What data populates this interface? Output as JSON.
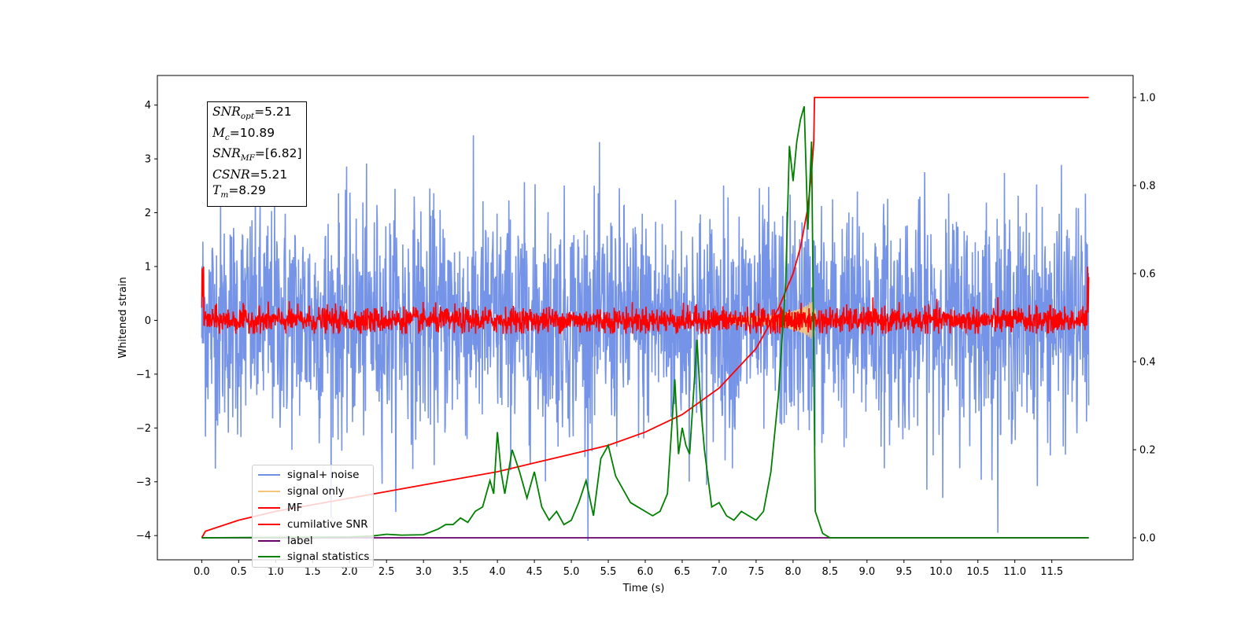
{
  "chart_data": {
    "type": "line",
    "xlabel": "Time (s)",
    "ylabel": "Whitened strain",
    "xlim": [
      -0.6,
      12.6
    ],
    "ylim": [
      -4.45,
      4.55
    ],
    "ylim_right": [
      -0.05,
      1.05
    ],
    "x_ticks": [
      "0.0",
      "0.5",
      "1.0",
      "1.5",
      "2.0",
      "2.5",
      "3.0",
      "3.5",
      "4.0",
      "4.5",
      "5.0",
      "5.5",
      "6.0",
      "6.5",
      "7.0",
      "7.5",
      "8.0",
      "8.5",
      "9.0",
      "9.5",
      "10.0",
      "10.5",
      "11.0",
      "11.5"
    ],
    "y_ticks_left": [
      "4",
      "3",
      "2",
      "1",
      "0",
      "−1",
      "−2",
      "−3",
      "−4"
    ],
    "y_ticks_right": [
      "1.0",
      "0.8",
      "0.6",
      "0.4",
      "0.2",
      "0.0"
    ],
    "grid": false,
    "legend_placement": "lower-left",
    "annotation": {
      "snr_opt": "=5.21",
      "mc": "=10.89",
      "snr_mf": "=[6.82]",
      "csnr": "=5.21",
      "tm": "=8.29"
    },
    "series": [
      {
        "name": "signal+ noise",
        "color": "#6f8ee6",
        "axis": "left",
        "description_values": {
          "x_range": [
            0,
            12
          ],
          "noise_std": 1.0,
          "offset": 0.0
        }
      },
      {
        "name": "signal only",
        "color": "#f5c37a",
        "axis": "left",
        "values_x": [
          7.0,
          7.5,
          7.8,
          8.0,
          8.15,
          8.25,
          8.29,
          8.32
        ],
        "values_amp": [
          0.05,
          0.08,
          0.12,
          0.18,
          0.25,
          0.35,
          0.3,
          0.0
        ]
      },
      {
        "name": "MF",
        "color": "#ff0000",
        "axis": "left",
        "description_values": {
          "x_range": [
            0,
            12
          ],
          "noise_std": 0.12,
          "offset": 0.0
        }
      },
      {
        "name": "cumilative SNR",
        "color": "#ff0000",
        "axis": "right",
        "x": [
          0.0,
          0.05,
          0.5,
          1.0,
          1.5,
          2.0,
          2.5,
          3.0,
          3.5,
          4.0,
          4.5,
          5.0,
          5.5,
          6.0,
          6.5,
          7.0,
          7.5,
          7.8,
          8.0,
          8.1,
          8.2,
          8.25,
          8.28,
          8.29,
          9.0,
          10.0,
          11.0,
          12.0
        ],
        "y": [
          0.0,
          0.015,
          0.04,
          0.06,
          0.075,
          0.09,
          0.105,
          0.12,
          0.135,
          0.15,
          0.17,
          0.19,
          0.21,
          0.24,
          0.28,
          0.34,
          0.43,
          0.52,
          0.6,
          0.66,
          0.75,
          0.83,
          0.9,
          1.0,
          1.0,
          1.0,
          1.0,
          1.0
        ]
      },
      {
        "name": "label",
        "color": "#6a006a",
        "axis": "right",
        "x": [
          0.0,
          12.0
        ],
        "y": [
          0.0,
          0.0
        ]
      },
      {
        "name": "signal statistics",
        "color": "#008000",
        "axis": "right",
        "x": [
          0.0,
          1.0,
          2.0,
          2.3,
          2.5,
          2.7,
          3.0,
          3.2,
          3.3,
          3.4,
          3.5,
          3.6,
          3.7,
          3.8,
          3.9,
          3.95,
          4.0,
          4.05,
          4.1,
          4.2,
          4.3,
          4.4,
          4.5,
          4.6,
          4.7,
          4.8,
          4.9,
          5.0,
          5.1,
          5.2,
          5.3,
          5.4,
          5.5,
          5.6,
          5.7,
          5.8,
          5.9,
          6.0,
          6.1,
          6.2,
          6.3,
          6.4,
          6.45,
          6.5,
          6.55,
          6.6,
          6.7,
          6.75,
          6.8,
          6.9,
          7.0,
          7.1,
          7.2,
          7.3,
          7.4,
          7.5,
          7.6,
          7.7,
          7.8,
          7.9,
          7.95,
          8.0,
          8.05,
          8.1,
          8.15,
          8.2,
          8.25,
          8.3,
          8.4,
          8.5,
          9.0,
          10.0,
          11.0,
          12.0
        ],
        "y": [
          0.0,
          0.001,
          0.002,
          0.004,
          0.008,
          0.006,
          0.007,
          0.02,
          0.03,
          0.03,
          0.045,
          0.035,
          0.06,
          0.07,
          0.13,
          0.1,
          0.24,
          0.15,
          0.1,
          0.2,
          0.15,
          0.09,
          0.15,
          0.07,
          0.04,
          0.06,
          0.03,
          0.04,
          0.08,
          0.13,
          0.05,
          0.18,
          0.21,
          0.14,
          0.11,
          0.08,
          0.07,
          0.06,
          0.05,
          0.06,
          0.1,
          0.36,
          0.19,
          0.25,
          0.21,
          0.19,
          0.45,
          0.3,
          0.2,
          0.07,
          0.08,
          0.05,
          0.04,
          0.06,
          0.05,
          0.04,
          0.06,
          0.15,
          0.32,
          0.58,
          0.89,
          0.81,
          0.9,
          0.95,
          0.98,
          0.7,
          0.9,
          0.06,
          0.01,
          0.0,
          0.0,
          0.0,
          0.0,
          0.0
        ]
      }
    ]
  }
}
